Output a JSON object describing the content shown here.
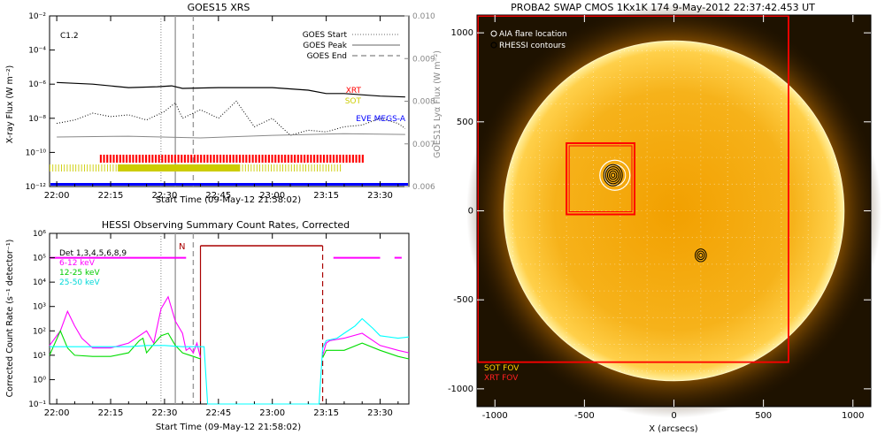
{
  "chart_data": [
    {
      "type": "line",
      "title": "GOES15 XRS",
      "xlabel": "Start Time (09-May-12 21:58:02)",
      "ylabel": "X-ray Flux (W m⁻²)",
      "ylabel_right": "GOES15 Lyα Flux (W m⁻²)",
      "x_ticks": [
        "22:00",
        "22:15",
        "22:30",
        "22:45",
        "23:00",
        "23:15",
        "23:30"
      ],
      "x_range_min": [
        -2,
        98
      ],
      "y_ticks_log": [
        -2,
        -4,
        -6,
        -8,
        -10,
        -12
      ],
      "y_tick_labels": [
        "10⁻²",
        "10⁻⁴",
        "10⁻⁶",
        "10⁻⁸",
        "10⁻¹⁰",
        "10⁻¹²"
      ],
      "y_right_ticks": [
        "0.010",
        "0.009",
        "0.008",
        "0.007",
        "0.006"
      ],
      "flare_class": "C1.2",
      "legend": {
        "start": "GOES Start",
        "peak": "GOES Peak",
        "end": "GOES End"
      },
      "event_lines_min": {
        "start": 29,
        "peak": 33,
        "end": 38
      },
      "labels": {
        "xrt": "XRT",
        "sot": "SOT",
        "eve": "EVE MEGS-A"
      },
      "colors": {
        "xrt": "#ff0000",
        "sot": "#cccc00",
        "eve": "#0000ff",
        "goes": "#000000",
        "lya": "#888888"
      },
      "series": [
        {
          "name": "long",
          "x": [
            0,
            10,
            20,
            28,
            32,
            35,
            45,
            60,
            70,
            75,
            80,
            90,
            97
          ],
          "y_log": [
            -5.9,
            -6.0,
            -6.2,
            -6.15,
            -6.1,
            -6.25,
            -6.2,
            -6.2,
            -6.35,
            -6.55,
            -6.55,
            -6.7,
            -6.75
          ]
        },
        {
          "name": "short",
          "x": [
            0,
            5,
            10,
            15,
            20,
            25,
            30,
            33,
            35,
            40,
            45,
            50,
            55,
            60,
            65,
            70,
            75,
            80,
            85,
            90,
            95,
            97
          ],
          "y_log": [
            -8.3,
            -8.1,
            -7.7,
            -7.9,
            -7.8,
            -8.1,
            -7.6,
            -7.1,
            -8.0,
            -7.5,
            -8.0,
            -7.0,
            -8.5,
            -8.0,
            -9.0,
            -8.7,
            -8.8,
            -8.5,
            -8.4,
            -8.0,
            -8.3,
            -8.6
          ]
        },
        {
          "name": "lya",
          "x": [
            0,
            20,
            40,
            60,
            80,
            97
          ],
          "y_log": [
            -9.1,
            -9.05,
            -9.15,
            -9.0,
            -8.9,
            -8.95
          ]
        }
      ],
      "coverage_min": {
        "xrt": [
          12,
          85
        ],
        "sot_light": [
          -2,
          79
        ],
        "sot_dense": [
          17,
          51
        ],
        "eve": [
          -2,
          98
        ]
      }
    },
    {
      "type": "line",
      "title": "HESSI Observing Summary Count Rates, Corrected",
      "xlabel": "Start Time (09-May-12 21:58:02)",
      "ylabel": "Corrected Count Rate (s⁻¹ detector⁻¹)",
      "x_ticks": [
        "22:00",
        "22:15",
        "22:30",
        "22:45",
        "23:00",
        "23:15",
        "23:30"
      ],
      "x_range_min": [
        -2,
        98
      ],
      "y_ticks_log": [
        6,
        5,
        4,
        3,
        2,
        1,
        0,
        -1
      ],
      "y_tick_labels": [
        "10⁶",
        "10⁵",
        "10⁴",
        "10³",
        "10²",
        "10¹",
        "10⁰",
        "10⁻¹"
      ],
      "legend": [
        "Det 1,3,4,5,6,8,9",
        "6-12 keV",
        "12-25 keV",
        "25-50 keV"
      ],
      "colors": {
        "det": "#ff00ff",
        "low": "#ff00ff",
        "mid": "#00dd00",
        "high": "#00ffff",
        "night": "#aa0000"
      },
      "night_label": "N",
      "event_lines_min": {
        "start": 29,
        "peak": 33,
        "end": 38
      },
      "night_interval_min": [
        40,
        74
      ],
      "series": [
        {
          "name": "6-12 keV",
          "x": [
            -2,
            1,
            3,
            5,
            7,
            10,
            15,
            20,
            25,
            27,
            29,
            31,
            33,
            35,
            36,
            37,
            38,
            39,
            40,
            41,
            74,
            75,
            76,
            80,
            85,
            90,
            95,
            98
          ],
          "y_log": [
            1.4,
            2.0,
            2.8,
            2.2,
            1.7,
            1.3,
            1.3,
            1.5,
            2.0,
            1.5,
            2.9,
            3.4,
            2.4,
            1.9,
            1.2,
            1.3,
            1.1,
            1.5,
            0.9,
            null,
            1.0,
            1.5,
            1.6,
            1.7,
            1.9,
            1.4,
            1.2,
            1.1
          ]
        },
        {
          "name": "12-25 keV",
          "x": [
            -2,
            1,
            3,
            5,
            10,
            15,
            20,
            23,
            24,
            25,
            29,
            31,
            33,
            35,
            38,
            40,
            41,
            74,
            75,
            80,
            85,
            90,
            95,
            98
          ],
          "y_log": [
            1.0,
            2.0,
            1.3,
            1.0,
            0.95,
            0.95,
            1.1,
            1.6,
            1.7,
            1.1,
            1.8,
            1.9,
            1.4,
            1.1,
            0.95,
            0.85,
            null,
            0.9,
            1.2,
            1.2,
            1.5,
            1.2,
            0.95,
            0.85
          ]
        },
        {
          "name": "25-50 keV",
          "x": [
            -2,
            10,
            20,
            25,
            30,
            35,
            38,
            40,
            41,
            42,
            73,
            74,
            75,
            78,
            80,
            83,
            85,
            88,
            90,
            95,
            98
          ],
          "y_log": [
            1.35,
            1.35,
            1.35,
            1.4,
            1.4,
            1.35,
            1.35,
            1.35,
            1.35,
            -1.0,
            -1.0,
            1.3,
            1.6,
            1.7,
            1.9,
            2.2,
            2.5,
            2.1,
            1.8,
            1.7,
            1.75
          ]
        },
        {
          "name": "Det 1,3,4,5,6,8,9",
          "segments_min": [
            [
              -2,
              36
            ],
            [
              77,
              90
            ],
            [
              94,
              96
            ]
          ],
          "y_log": 5.0
        }
      ]
    },
    {
      "type": "image",
      "title": "PROBA2 SWAP CMOS 1Kx1K 174  9-May-2012 22:37:42.453 UT",
      "xlabel": "X (arcsecs)",
      "ylabel": "Y (arcsecs)",
      "x_ticks": [
        -1000,
        -500,
        0,
        500,
        1000
      ],
      "y_ticks": [
        1000,
        500,
        0,
        -500,
        -1000
      ],
      "x_range_arcsec": [
        -1100,
        1100
      ],
      "y_range_arcsec": [
        -1100,
        1100
      ],
      "legend": [
        "AIA flare location",
        "RHESSI contours"
      ],
      "fov_labels": [
        "SOT FOV",
        "XRT FOV"
      ],
      "fov_color": "#ff0000",
      "solar_radius_arcsec": 950,
      "sot_fov_arcsec": {
        "xmin": -600,
        "xmax": -220,
        "ymin": -20,
        "ymax": 380
      },
      "xrt_fov_arcsec": {
        "xmin": -1100,
        "xmax": 640,
        "ymin": -850,
        "ymax": 1100
      },
      "aia_flare_arcsec": [
        -330,
        200
      ],
      "aia_radius_arcsec": 70,
      "rhessi_sources_arcsec": [
        [
          -340,
          200
        ],
        [
          150,
          -250
        ]
      ]
    }
  ]
}
